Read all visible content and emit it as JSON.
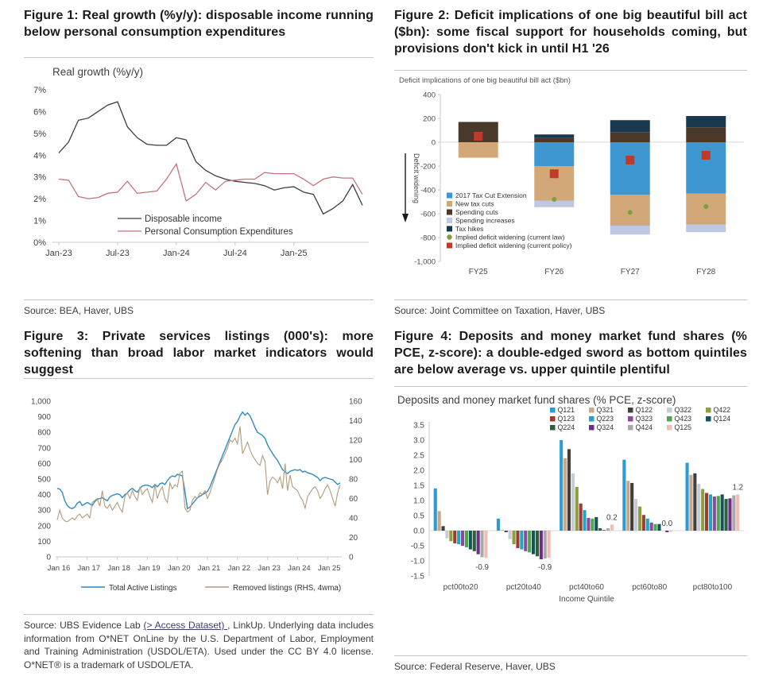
{
  "panels": [
    {
      "title": "Figure 1: Real growth (%y/y): disposable income running below personal consumption expenditures",
      "source": "Source: BEA, Haver, UBS"
    },
    {
      "title": "Figure 2: Deficit implications of one big beautiful bill act ($bn): some fiscal support for households coming, but provisions don't kick in until H1 '26",
      "source": "Source: Joint Committee on Taxation, Haver, UBS"
    },
    {
      "title": "Figure 3: Private services listings (000's): more softening than broad labor market indicators would suggest",
      "source_pre": "Source: UBS Evidence Lab ",
      "source_link": "(> Access Dataset) ",
      "source_post": ", LinkUp. Underlying data includes information from O*NET OnLine by the U.S. Department of Labor, Employment and Training Administration (USDOL/ETA). Used under the CC BY 4.0 license. O*NET® is a trademark of USDOL/ETA."
    },
    {
      "title": "Figure 4: Deposits and money market fund shares (% PCE, z-score): a double-edged sword as bottom quintiles are below average vs. upper quintile plentiful",
      "source": "Source: Federal Reserve, Haver, UBS"
    }
  ],
  "chart_data": [
    {
      "type": "line",
      "title": "Real growth (%y/y)",
      "ylim": [
        0,
        7
      ],
      "y_tick_suffix": "%",
      "x_tick_labels": [
        "Jan-23",
        "Jul-23",
        "Jan-24",
        "Jul-24",
        "Jan-25"
      ],
      "x_tick_index": [
        0,
        6,
        12,
        18,
        24
      ],
      "legend_position": "inside-bottom",
      "series": [
        {
          "name": "Disposable income",
          "color": "#3C3C46",
          "values": [
            4.1,
            4.6,
            5.6,
            5.7,
            6.0,
            6.3,
            6.45,
            5.3,
            4.8,
            4.5,
            4.45,
            4.45,
            4.8,
            4.7,
            3.7,
            3.3,
            3.05,
            2.9,
            2.8,
            2.75,
            2.7,
            2.6,
            2.4,
            2.5,
            2.55,
            2.3,
            2.2,
            1.3,
            1.55,
            1.9,
            2.65,
            1.7
          ]
        },
        {
          "name": "Personal Consumption Expenditures",
          "color": "#C4737B",
          "values": [
            2.9,
            2.85,
            2.1,
            2.0,
            2.05,
            2.25,
            2.3,
            2.8,
            2.25,
            2.3,
            2.35,
            2.9,
            3.6,
            1.9,
            2.2,
            2.75,
            2.4,
            2.8,
            2.85,
            2.9,
            2.9,
            3.2,
            3.15,
            3.15,
            3.15,
            2.9,
            2.6,
            2.9,
            3.0,
            2.95,
            2.95,
            2.2
          ]
        }
      ]
    },
    {
      "type": "bar",
      "stacked": true,
      "title": "Deficit implications of one big beautiful bill act ($bn)",
      "categories": [
        "FY25",
        "FY26",
        "FY27",
        "FY28"
      ],
      "ylim": [
        -1000,
        400
      ],
      "y_tick_step": 200,
      "ylabel": "Deficit widening",
      "series": [
        {
          "name": "2017 Tax Cut Extension",
          "color": "#3F97D1",
          "values": [
            0,
            -200,
            -440,
            -430
          ]
        },
        {
          "name": "New tax cuts",
          "color": "#D2A878",
          "values": [
            -130,
            -290,
            -260,
            -260
          ]
        },
        {
          "name": "Spending cuts",
          "color": "#4A392B",
          "values": [
            170,
            35,
            85,
            125
          ]
        },
        {
          "name": "Spending increases",
          "color": "#BFC7E2",
          "values": [
            0,
            -55,
            -75,
            -65
          ]
        },
        {
          "name": "Tax hikes",
          "color": "#17384E",
          "values": [
            0,
            30,
            100,
            95
          ]
        }
      ],
      "markers": [
        {
          "name": "Implied deficit widening (current law)",
          "color": "#7F9E3F",
          "shape": "circle",
          "values": [
            null,
            -480,
            -590,
            -540
          ]
        },
        {
          "name": "Implied deficit widening  (current policy)",
          "color": "#BF3A28",
          "shape": "square",
          "values": [
            50,
            -265,
            -150,
            -110
          ]
        }
      ]
    },
    {
      "type": "line",
      "dual_axis": true,
      "ylim_left": [
        0,
        1000
      ],
      "ylim_right": [
        0,
        160
      ],
      "y_tick_step_left": 100,
      "y_tick_step_right": 20,
      "x_tick_labels": [
        "Jan 16",
        "Jan 17",
        "Jan 18",
        "Jan 19",
        "Jan 20",
        "Jan 21",
        "Jan 22",
        "Jan 23",
        "Jan 24",
        "Jan 25"
      ],
      "x_tick_index": [
        0,
        12,
        24,
        36,
        48,
        60,
        72,
        84,
        96,
        108
      ],
      "legend_position": "bottom",
      "series": [
        {
          "name": "Total Active Listings",
          "color": "#2F8CBE",
          "axis": "left",
          "values": [
            440,
            435,
            415,
            360,
            330,
            315,
            310,
            320,
            345,
            355,
            330,
            340,
            350,
            340,
            330,
            355,
            370,
            375,
            380,
            370,
            360,
            385,
            395,
            400,
            405,
            400,
            380,
            400,
            410,
            430,
            440,
            425,
            415,
            440,
            455,
            460,
            460,
            455,
            445,
            465,
            450,
            470,
            475,
            465,
            490,
            510,
            520,
            515,
            530,
            525,
            520,
            420,
            310,
            320,
            340,
            360,
            380,
            390,
            400,
            410,
            420,
            450,
            490,
            530,
            570,
            610,
            650,
            690,
            730,
            770,
            810,
            850,
            870,
            905,
            930,
            910,
            925,
            905,
            870,
            830,
            800,
            790,
            780,
            760,
            720,
            690,
            665,
            640,
            620,
            590,
            560,
            545,
            535,
            550,
            555,
            560,
            555,
            560,
            545,
            550,
            540,
            535,
            530,
            520,
            510,
            490,
            505,
            510,
            505,
            500,
            495,
            480,
            465,
            475
          ]
        },
        {
          "name": "Removed listings (RHS, 4wma)",
          "color": "#B29B7C",
          "axis": "right",
          "values": [
            38,
            48,
            40,
            37,
            36,
            38,
            40,
            38,
            42,
            44,
            40,
            42,
            44,
            40,
            56,
            58,
            60,
            52,
            68,
            52,
            50,
            54,
            48,
            52,
            56,
            50,
            46,
            62,
            66,
            60,
            68,
            62,
            58,
            72,
            64,
            68,
            70,
            62,
            56,
            74,
            60,
            68,
            72,
            60,
            56,
            76,
            70,
            74,
            72,
            86,
            88,
            50,
            46,
            48,
            58,
            62,
            60,
            66,
            64,
            68,
            60,
            66,
            74,
            82,
            90,
            96,
            100,
            106,
            112,
            120,
            118,
            122,
            116,
            134,
            106,
            112,
            118,
            110,
            104,
            100,
            96,
            94,
            104,
            98,
            64,
            78,
            82,
            80,
            76,
            82,
            70,
            96,
            68,
            84,
            72,
            70,
            68,
            62,
            58,
            50,
            62,
            66,
            70,
            72,
            68,
            60,
            64,
            70,
            74,
            68,
            60,
            52,
            66,
            74
          ]
        }
      ]
    },
    {
      "type": "bar",
      "grouped": true,
      "title": "Deposits and money market fund shares (% PCE, z-score)",
      "categories": [
        "pct00to20",
        "pct20to40",
        "pct40to60",
        "pct60to80",
        "pct80to100"
      ],
      "xlabel": "Income Quintile",
      "ylim": [
        -1.5,
        3.5
      ],
      "y_tick_step": 0.5,
      "legend_position": "top-right",
      "series": [
        {
          "name": "Q121",
          "color": "#2E9BD5",
          "values": [
            1.4,
            0.4,
            3.0,
            2.35,
            2.25
          ]
        },
        {
          "name": "Q321",
          "color": "#C9A887",
          "values": [
            0.65,
            0.02,
            2.4,
            1.65,
            1.85
          ]
        },
        {
          "name": "Q122",
          "color": "#3F3F3F",
          "values": [
            0.15,
            -0.05,
            2.7,
            1.58,
            1.9
          ]
        },
        {
          "name": "Q322",
          "color": "#C7CBD4",
          "values": [
            -0.25,
            -0.28,
            1.9,
            1.05,
            1.55
          ]
        },
        {
          "name": "Q422",
          "color": "#8C9E3E",
          "values": [
            -0.35,
            -0.45,
            1.45,
            0.8,
            1.38
          ]
        },
        {
          "name": "Q123",
          "color": "#9E3B33",
          "values": [
            -0.42,
            -0.58,
            0.9,
            0.52,
            1.25
          ]
        },
        {
          "name": "Q223",
          "color": "#21A5C4",
          "values": [
            -0.45,
            -0.62,
            0.68,
            0.4,
            1.2
          ]
        },
        {
          "name": "Q323",
          "color": "#8B4A9E",
          "values": [
            -0.5,
            -0.68,
            0.42,
            0.27,
            1.13
          ]
        },
        {
          "name": "Q423",
          "color": "#4CA64C",
          "values": [
            -0.55,
            -0.72,
            0.4,
            0.22,
            1.15
          ]
        },
        {
          "name": "Q124",
          "color": "#14555C",
          "values": [
            -0.62,
            -0.78,
            0.45,
            0.22,
            1.2
          ]
        },
        {
          "name": "Q224",
          "color": "#2D5F3A",
          "values": [
            -0.68,
            -0.85,
            0.08,
            0.0,
            1.05
          ]
        },
        {
          "name": "Q324",
          "color": "#6B2E85",
          "values": [
            -0.78,
            -0.95,
            0.02,
            -0.05,
            1.07
          ]
        },
        {
          "name": "Q424",
          "color": "#A9A9A9",
          "values": [
            -0.88,
            -0.92,
            0.08,
            -0.02,
            1.17
          ]
        },
        {
          "name": "Q125",
          "color": "#F2BCB2",
          "values": [
            -0.9,
            -0.9,
            0.2,
            0.0,
            1.2
          ]
        }
      ],
      "annotations": [
        {
          "category": "pct00to20",
          "text": "-0.9",
          "value": -0.9,
          "position": "below",
          "bar_index": 12
        },
        {
          "category": "pct20to40",
          "text": "-0.9",
          "value": -0.9,
          "position": "below",
          "bar_index": 12
        },
        {
          "category": "pct40to60",
          "text": "0.2",
          "value": 0.2,
          "position": "above",
          "bar_index": 13
        },
        {
          "category": "pct60to80",
          "text": "0.0",
          "value": 0.0,
          "position": "above",
          "bar_index": 11
        },
        {
          "category": "pct80to100",
          "text": "1.2",
          "value": 1.2,
          "position": "above",
          "bar_index": 13
        }
      ]
    }
  ]
}
